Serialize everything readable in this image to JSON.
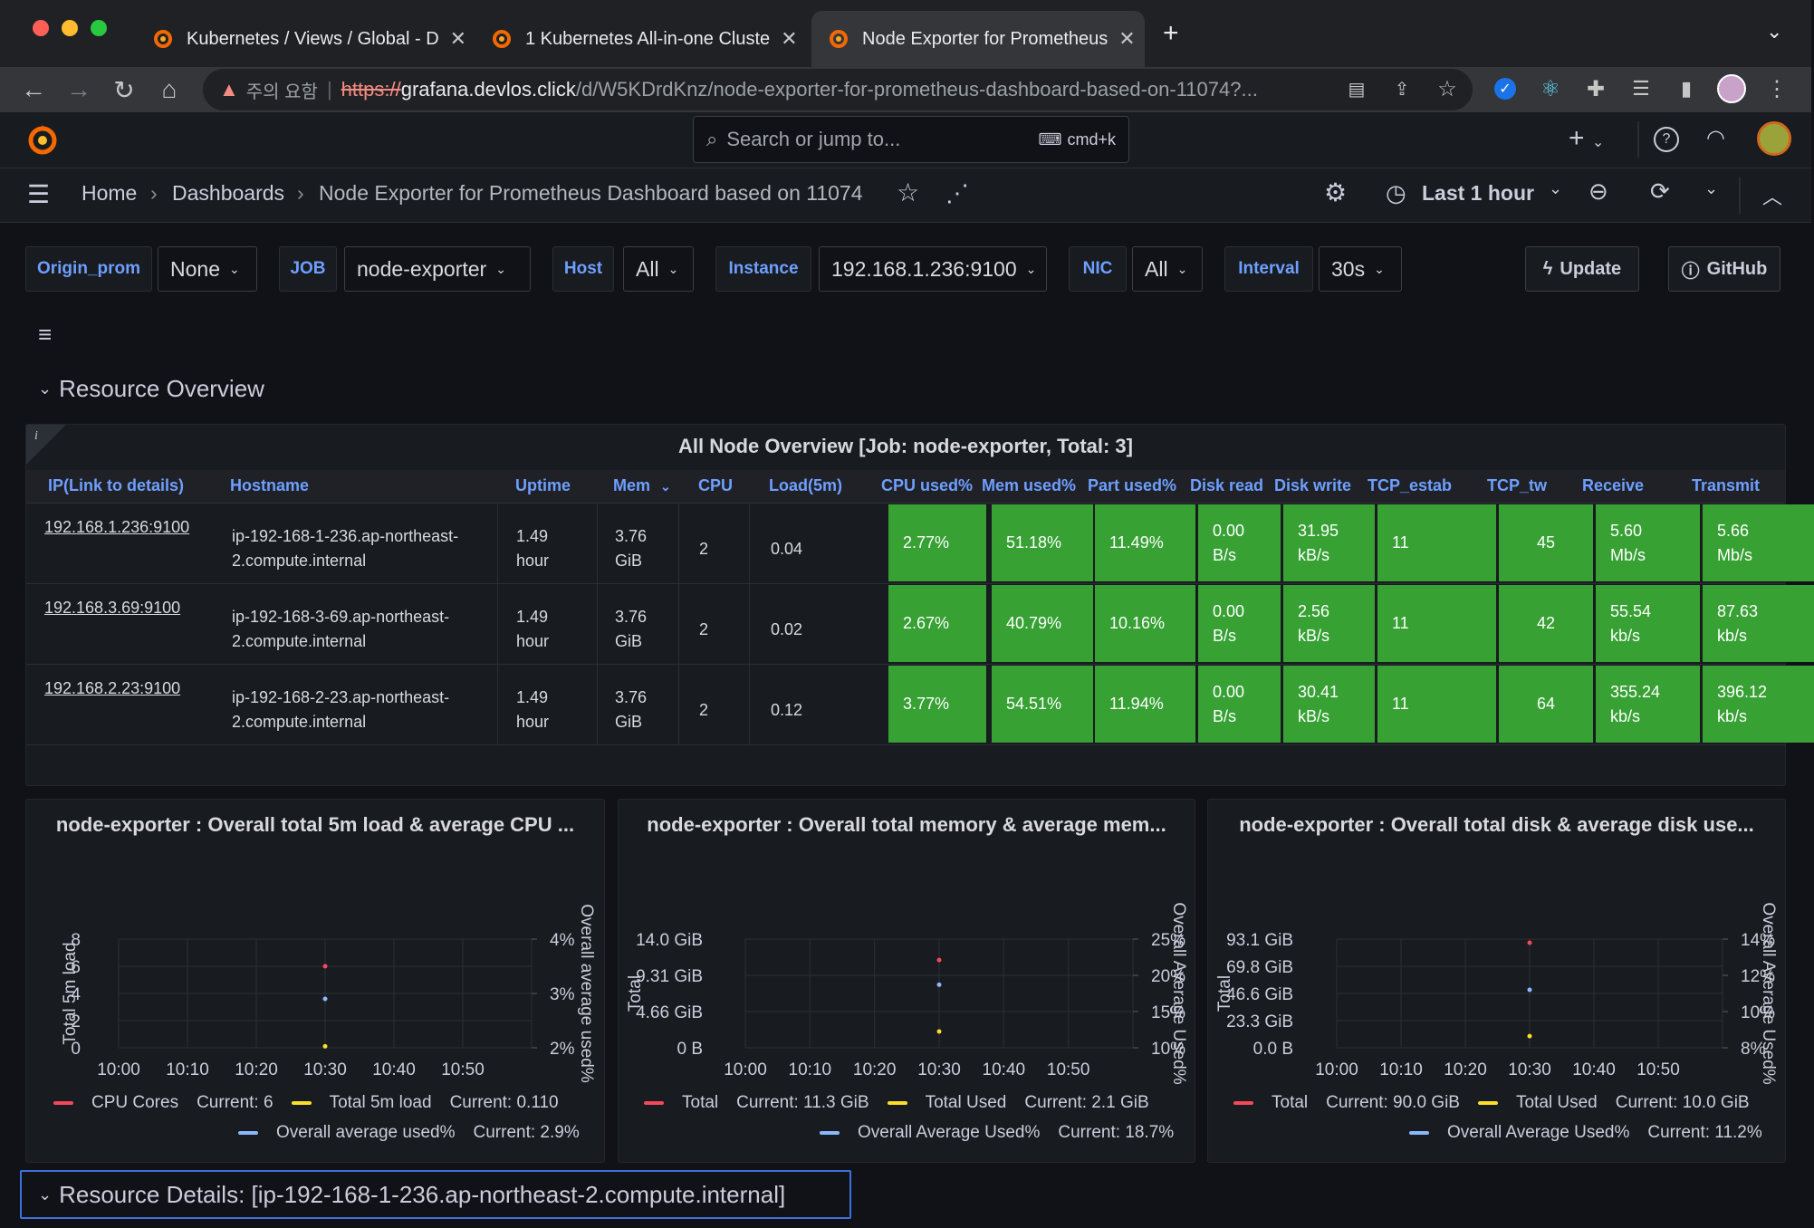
{
  "browser": {
    "tabs": [
      {
        "title": "Kubernetes / Views / Global - D",
        "active": false
      },
      {
        "title": "1 Kubernetes All-in-one Cluste",
        "active": false
      },
      {
        "title": "Node Exporter for Prometheus",
        "active": true
      }
    ],
    "warning_text": "주의 요함",
    "url_scheme": "https://",
    "url_host": "grafana.devlos.click",
    "url_path": "/d/W5KDrdKnz/node-exporter-for-prometheus-dashboard-based-on-11074?..."
  },
  "grafana": {
    "search_placeholder": "Search or jump to...",
    "search_shortcut": "cmd+k",
    "breadcrumbs": [
      "Home",
      "Dashboards",
      "Node Exporter for Prometheus Dashboard based on 11074"
    ],
    "time_range": "Last 1 hour"
  },
  "variables": [
    {
      "label": "Origin_prom",
      "value": "None"
    },
    {
      "label": "JOB",
      "value": "node-exporter"
    },
    {
      "label": "Host",
      "value": "All"
    },
    {
      "label": "Instance",
      "value": "192.168.1.236:9100"
    },
    {
      "label": "NIC",
      "value": "All"
    },
    {
      "label": "Interval",
      "value": "30s"
    }
  ],
  "links": {
    "update": "Update",
    "github": "GitHub"
  },
  "rows": {
    "overview": "Resource Overview",
    "details": "Resource Details: [ip-192-168-1-236.ap-northeast-2.compute.internal]"
  },
  "table": {
    "title": "All Node Overview [Job: node-exporter, Total: 3]",
    "info": "i",
    "headers": [
      "IP(Link to details)",
      "Hostname",
      "Uptime",
      "Mem",
      "CPU",
      "Load(5m)",
      "CPU used%",
      "Mem used%",
      "Part used%",
      "Disk read",
      "Disk write",
      "TCP_estab",
      "TCP_tw",
      "Receive",
      "Transmit"
    ],
    "rows": [
      [
        "192.168.1.236:9100",
        "ip-192-168-1-236.ap-northeast-",
        "2.compute.internal",
        "1.49",
        "hour",
        "3.76",
        "GiB",
        "2",
        "0.04",
        "2.77%",
        "51.18%",
        "11.49%",
        "0.00",
        "B/s",
        "31.95",
        "kB/s",
        "11",
        "45",
        "5.60",
        "Mb/s",
        "5.66",
        "Mb/s"
      ],
      [
        "192.168.3.69:9100",
        "ip-192-168-3-69.ap-northeast-",
        "2.compute.internal",
        "1.49",
        "hour",
        "3.76",
        "GiB",
        "2",
        "0.02",
        "2.67%",
        "40.79%",
        "10.16%",
        "0.00",
        "B/s",
        "2.56",
        "kB/s",
        "11",
        "42",
        "55.54",
        "kb/s",
        "87.63",
        "kb/s"
      ],
      [
        "192.168.2.23:9100",
        "ip-192-168-2-23.ap-northeast-",
        "2.compute.internal",
        "1.49",
        "hour",
        "3.76",
        "GiB",
        "2",
        "0.12",
        "3.77%",
        "54.51%",
        "11.94%",
        "0.00",
        "B/s",
        "30.41",
        "kB/s",
        "11",
        "64",
        "355.24",
        "kb/s",
        "396.12",
        "kb/s"
      ]
    ]
  },
  "chart_data": [
    {
      "type": "scatter",
      "title": "node-exporter : Overall total 5m load & average CPU ...",
      "ylabel": "Total 5m load",
      "y2label": "Overall average used%",
      "xticks": [
        "10:00",
        "10:10",
        "10:20",
        "10:30",
        "10:40",
        "10:50"
      ],
      "yticks": [
        "0",
        "2",
        "4",
        "6",
        "8"
      ],
      "y2ticks": [
        "2%",
        "3%",
        "4%"
      ],
      "ylim": [
        0,
        8
      ],
      "y2lim": [
        2,
        4
      ],
      "series": [
        {
          "name": "CPU Cores",
          "legend": "Current: 6",
          "color": "#f2495c",
          "axis": "left",
          "x": "10:30",
          "y": 6
        },
        {
          "name": "Total 5m load",
          "legend": "Current: 0.110",
          "color": "#fade2a",
          "axis": "left",
          "x": "10:30",
          "y": 0.11
        },
        {
          "name": "Overall average used%",
          "legend": "Current: 2.9%",
          "color": "#8ab8ff",
          "axis": "right",
          "x": "10:30",
          "y": 2.9
        }
      ]
    },
    {
      "type": "scatter",
      "title": "node-exporter : Overall total memory & average mem...",
      "ylabel": "Total",
      "y2label": "Overall Average Used%",
      "xticks": [
        "10:00",
        "10:10",
        "10:20",
        "10:30",
        "10:40",
        "10:50"
      ],
      "yticks": [
        "0 B",
        "4.66 GiB",
        "9.31 GiB",
        "14.0 GiB"
      ],
      "y2ticks": [
        "10%",
        "15%",
        "20%",
        "25%"
      ],
      "ylim": [
        0,
        14.0
      ],
      "y2lim": [
        10,
        25
      ],
      "series": [
        {
          "name": "Total",
          "legend": "Current: 11.3 GiB",
          "color": "#f2495c",
          "axis": "left",
          "x": "10:30",
          "y": 11.3
        },
        {
          "name": "Total Used",
          "legend": "Current: 2.1 GiB",
          "color": "#fade2a",
          "axis": "left",
          "x": "10:30",
          "y": 2.1
        },
        {
          "name": "Overall Average Used%",
          "legend": "Current: 18.7%",
          "color": "#8ab8ff",
          "axis": "right",
          "x": "10:30",
          "y": 18.7
        }
      ]
    },
    {
      "type": "scatter",
      "title": "node-exporter : Overall total disk & average disk use...",
      "ylabel": "Total",
      "y2label": "Overall Average Used%",
      "xticks": [
        "10:00",
        "10:10",
        "10:20",
        "10:30",
        "10:40",
        "10:50"
      ],
      "yticks": [
        "0.0 B",
        "23.3 GiB",
        "46.6 GiB",
        "69.8 GiB",
        "93.1 GiB"
      ],
      "y2ticks": [
        "8%",
        "10%",
        "12%",
        "14%"
      ],
      "ylim": [
        0,
        93.1
      ],
      "y2lim": [
        8,
        14
      ],
      "series": [
        {
          "name": "Total",
          "legend": "Current: 90.0 GiB",
          "color": "#f2495c",
          "axis": "left",
          "x": "10:30",
          "y": 90.0
        },
        {
          "name": "Total Used",
          "legend": "Current: 10.0 GiB",
          "color": "#fade2a",
          "axis": "left",
          "x": "10:30",
          "y": 10.0
        },
        {
          "name": "Overall Average Used%",
          "legend": "Current: 11.2%",
          "color": "#8ab8ff",
          "axis": "right",
          "x": "10:30",
          "y": 11.2
        }
      ]
    }
  ]
}
